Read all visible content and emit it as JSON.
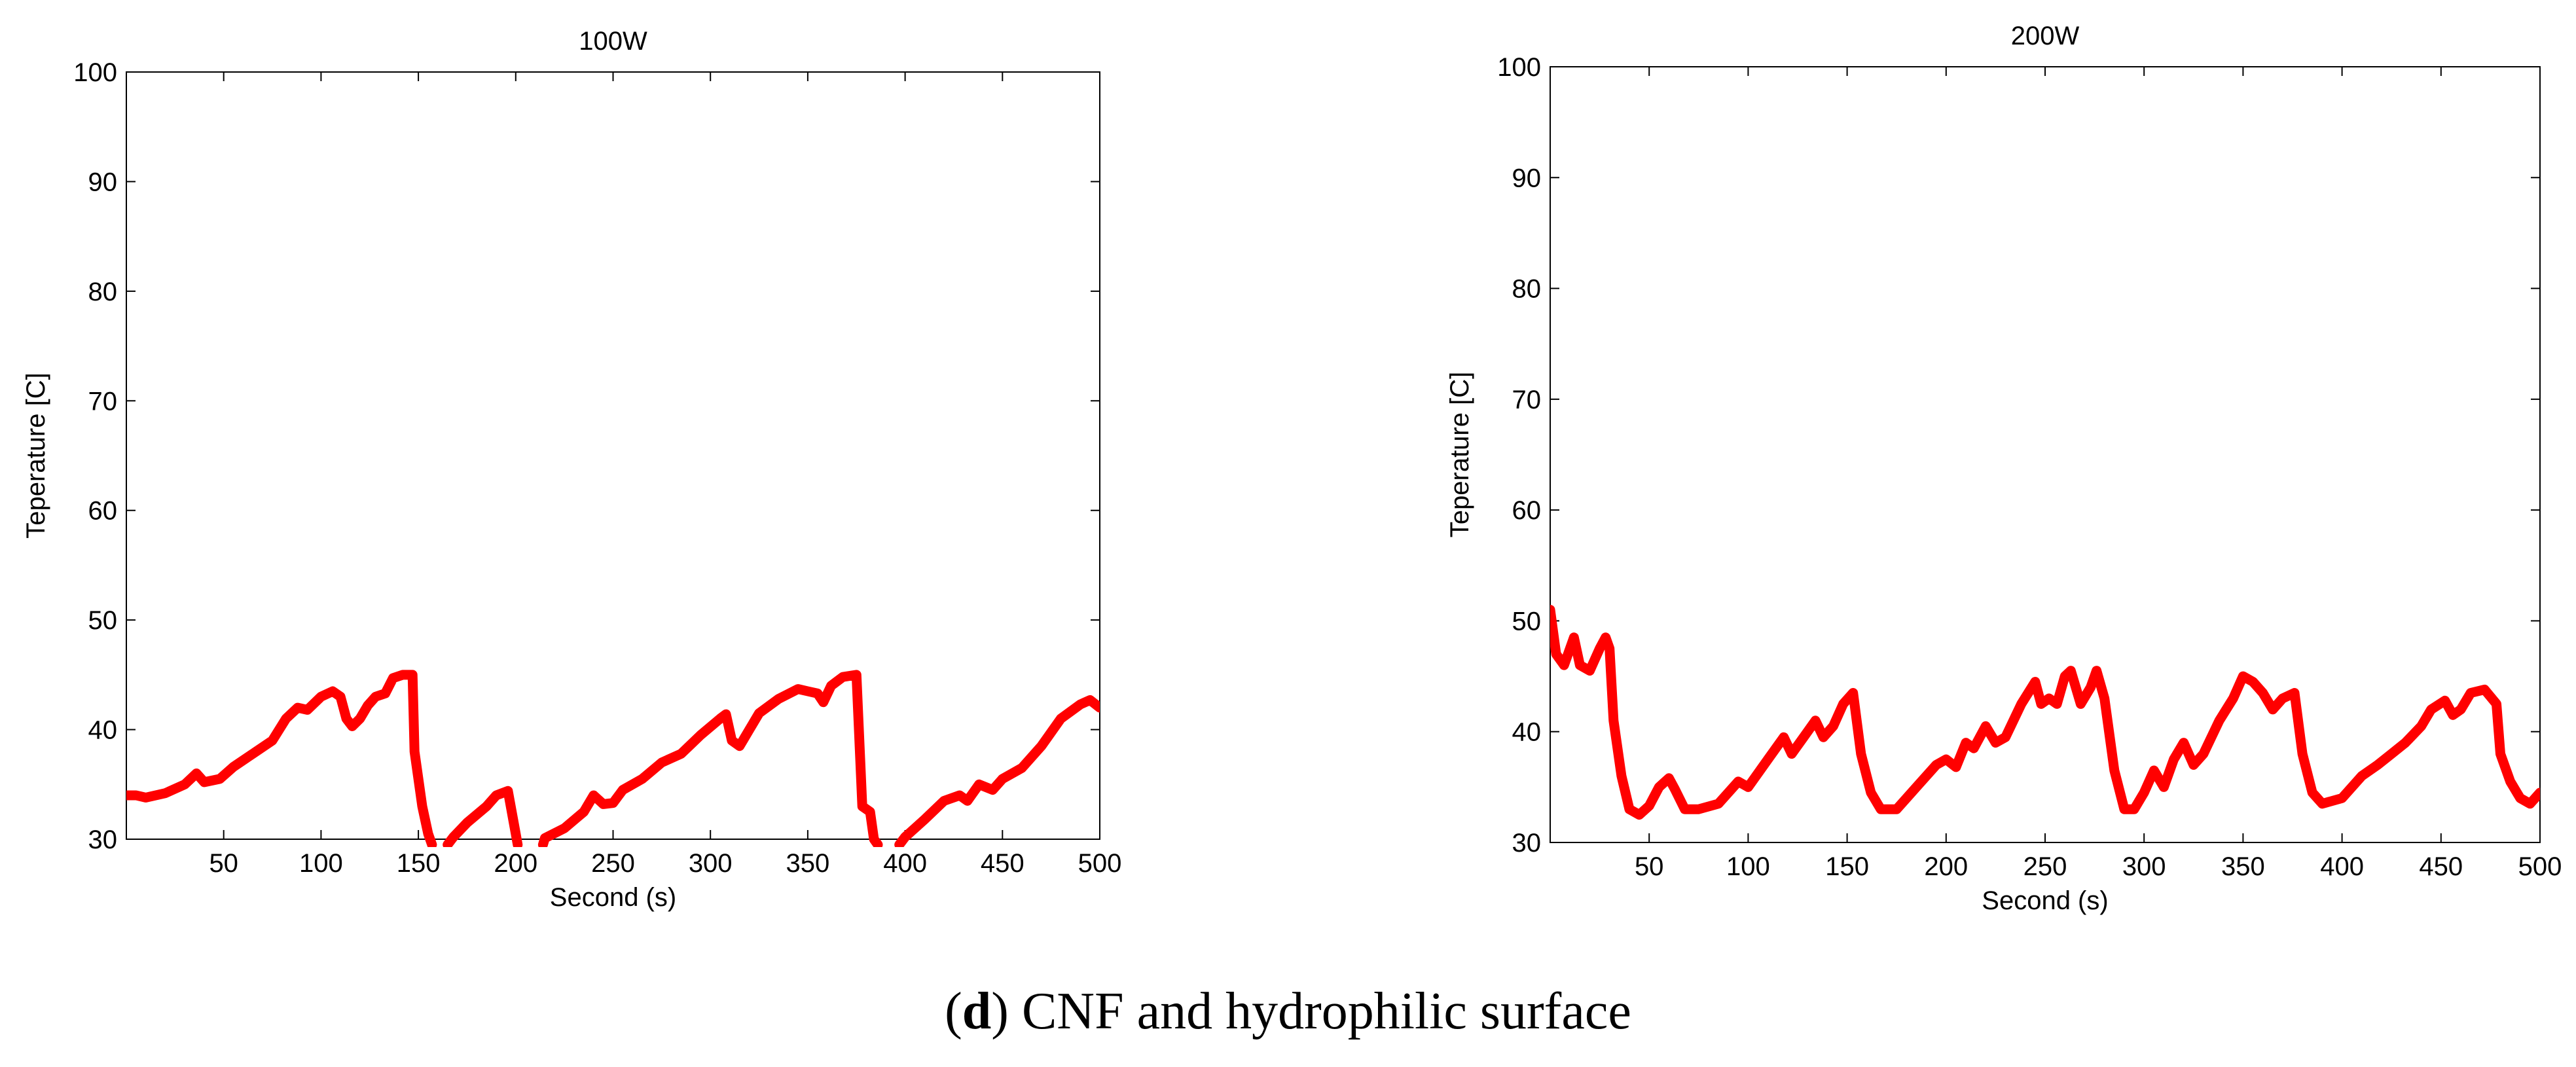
{
  "chart_data": [
    {
      "type": "line",
      "title": "100W",
      "xlabel": "Second (s)",
      "ylabel": "Teperature [C]",
      "xlim": [
        0,
        500
      ],
      "ylim": [
        30,
        100
      ],
      "xticks": [
        50,
        100,
        150,
        200,
        250,
        300,
        350,
        400,
        450,
        500
      ],
      "yticks": [
        30,
        40,
        50,
        60,
        70,
        80,
        90,
        100
      ],
      "series": [
        {
          "name": "temperature",
          "color": "#ff0000",
          "points": [
            [
              0,
              34.0
            ],
            [
              5,
              34.0
            ],
            [
              10,
              33.8
            ],
            [
              20,
              34.2
            ],
            [
              30,
              35.0
            ],
            [
              36,
              36.0
            ],
            [
              40,
              35.2
            ],
            [
              48,
              35.5
            ],
            [
              55,
              36.6
            ],
            [
              65,
              37.8
            ],
            [
              75,
              39.0
            ],
            [
              82,
              41.0
            ],
            [
              88,
              42.0
            ],
            [
              93,
              41.8
            ],
            [
              100,
              43.0
            ],
            [
              106,
              43.5
            ],
            [
              110,
              43.0
            ],
            [
              113,
              41.0
            ],
            [
              116,
              40.3
            ],
            [
              120,
              41.0
            ],
            [
              124,
              42.2
            ],
            [
              128,
              43.0
            ],
            [
              133,
              43.3
            ],
            [
              137,
              44.7
            ],
            [
              142,
              45.0
            ],
            [
              147,
              45.0
            ],
            [
              148,
              38.0
            ],
            [
              152,
              33.0
            ],
            [
              155,
              30.5
            ],
            [
              157,
              29.5
            ],
            null,
            [
              165,
              29.5
            ],
            [
              168,
              30.2
            ],
            [
              175,
              31.5
            ],
            [
              185,
              33.0
            ],
            [
              190,
              34.0
            ],
            [
              196,
              34.4
            ],
            [
              200,
              30.5
            ],
            [
              201,
              29.5
            ],
            null,
            [
              214,
              29.5
            ],
            [
              215,
              30.1
            ],
            [
              225,
              31.0
            ],
            [
              235,
              32.5
            ],
            [
              240,
              34.0
            ],
            [
              245,
              33.2
            ],
            [
              250,
              33.3
            ],
            [
              255,
              34.5
            ],
            [
              265,
              35.5
            ],
            [
              275,
              37.0
            ],
            [
              285,
              37.8
            ],
            [
              295,
              39.5
            ],
            [
              305,
              41.0
            ],
            [
              308,
              41.4
            ],
            [
              311,
              39.0
            ],
            [
              315,
              38.5
            ],
            [
              320,
              40.0
            ],
            [
              325,
              41.5
            ],
            [
              335,
              42.8
            ],
            [
              345,
              43.7
            ],
            [
              350,
              43.5
            ],
            [
              355,
              43.3
            ],
            [
              358,
              42.5
            ],
            [
              362,
              44.0
            ],
            [
              368,
              44.8
            ],
            [
              375,
              45.0
            ],
            [
              378,
              33.0
            ],
            [
              382,
              32.5
            ],
            [
              384,
              30.0
            ],
            [
              386,
              29.5
            ],
            null,
            [
              397,
              29.5
            ],
            [
              400,
              30.2
            ],
            [
              410,
              31.8
            ],
            [
              420,
              33.5
            ],
            [
              428,
              34.0
            ],
            [
              432,
              33.5
            ],
            [
              438,
              35.0
            ],
            [
              445,
              34.5
            ],
            [
              450,
              35.5
            ],
            [
              460,
              36.5
            ],
            [
              470,
              38.5
            ],
            [
              480,
              41.0
            ],
            [
              490,
              42.3
            ],
            [
              495,
              42.7
            ],
            [
              500,
              42.0
            ]
          ]
        }
      ]
    },
    {
      "type": "line",
      "title": "200W",
      "xlabel": "Second (s)",
      "ylabel": "Teperature [C]",
      "xlim": [
        0,
        500
      ],
      "ylim": [
        30,
        100
      ],
      "xticks": [
        50,
        100,
        150,
        200,
        250,
        300,
        350,
        400,
        450,
        500
      ],
      "yticks": [
        30,
        40,
        50,
        60,
        70,
        80,
        90,
        100
      ],
      "series": [
        {
          "name": "temperature",
          "color": "#ff0000",
          "points": [
            [
              0,
              51.0
            ],
            [
              3,
              47.0
            ],
            [
              7,
              46.0
            ],
            [
              12,
              48.5
            ],
            [
              15,
              46.0
            ],
            [
              20,
              45.5
            ],
            [
              25,
              47.5
            ],
            [
              28,
              48.5
            ],
            [
              30,
              47.5
            ],
            [
              32,
              41.0
            ],
            [
              36,
              36.0
            ],
            [
              40,
              33.0
            ],
            [
              45,
              32.5
            ],
            [
              50,
              33.3
            ],
            [
              55,
              35.0
            ],
            [
              60,
              35.8
            ],
            [
              63,
              34.8
            ],
            [
              68,
              33.0
            ],
            [
              75,
              33.0
            ],
            [
              85,
              33.5
            ],
            [
              95,
              35.5
            ],
            [
              100,
              35.0
            ],
            [
              110,
              37.5
            ],
            [
              118,
              39.5
            ],
            [
              122,
              38.0
            ],
            [
              128,
              39.5
            ],
            [
              134,
              41.0
            ],
            [
              138,
              39.5
            ],
            [
              143,
              40.5
            ],
            [
              148,
              42.5
            ],
            [
              153,
              43.5
            ],
            [
              157,
              38.0
            ],
            [
              162,
              34.5
            ],
            [
              167,
              33.0
            ],
            [
              175,
              33.0
            ],
            [
              185,
              35.0
            ],
            [
              195,
              37.0
            ],
            [
              200,
              37.5
            ],
            [
              205,
              36.8
            ],
            [
              210,
              39.0
            ],
            [
              214,
              38.5
            ],
            [
              220,
              40.5
            ],
            [
              225,
              39.0
            ],
            [
              230,
              39.5
            ],
            [
              238,
              42.5
            ],
            [
              245,
              44.5
            ],
            [
              248,
              42.5
            ],
            [
              252,
              43.0
            ],
            [
              256,
              42.5
            ],
            [
              260,
              45.0
            ],
            [
              263,
              45.5
            ],
            [
              268,
              42.5
            ],
            [
              273,
              44.0
            ],
            [
              276,
              45.5
            ],
            [
              280,
              43.0
            ],
            [
              285,
              36.5
            ],
            [
              290,
              33.0
            ],
            [
              295,
              33.0
            ],
            [
              300,
              34.5
            ],
            [
              305,
              36.5
            ],
            [
              310,
              35.0
            ],
            [
              315,
              37.5
            ],
            [
              320,
              39.0
            ],
            [
              325,
              37.0
            ],
            [
              330,
              38.0
            ],
            [
              338,
              41.0
            ],
            [
              345,
              43.0
            ],
            [
              350,
              45.0
            ],
            [
              355,
              44.5
            ],
            [
              360,
              43.5
            ],
            [
              365,
              42.0
            ],
            [
              370,
              43.0
            ],
            [
              376,
              43.5
            ],
            [
              380,
              38.0
            ],
            [
              385,
              34.5
            ],
            [
              390,
              33.5
            ],
            [
              400,
              34.0
            ],
            [
              410,
              36.0
            ],
            [
              418,
              37.0
            ],
            [
              425,
              38.0
            ],
            [
              432,
              39.0
            ],
            [
              440,
              40.5
            ],
            [
              445,
              42.0
            ],
            [
              452,
              42.8
            ],
            [
              456,
              41.5
            ],
            [
              460,
              42.0
            ],
            [
              465,
              43.5
            ],
            [
              472,
              43.8
            ],
            [
              478,
              42.5
            ],
            [
              480,
              38.0
            ],
            [
              485,
              35.5
            ],
            [
              490,
              34.0
            ],
            [
              495,
              33.5
            ],
            [
              500,
              34.5
            ]
          ]
        }
      ]
    }
  ],
  "caption": {
    "letter": "d",
    "open": "(",
    "close": ")",
    "text": " CNF and hydrophilic surface"
  }
}
